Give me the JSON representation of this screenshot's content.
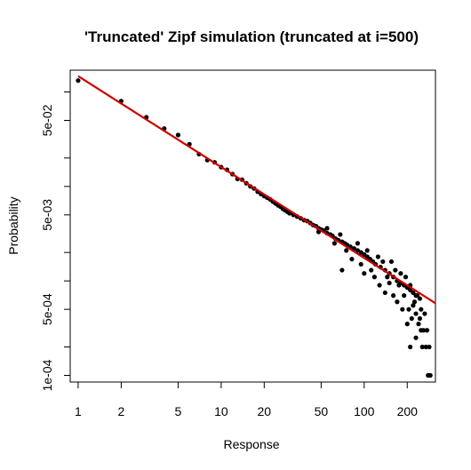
{
  "chart_data": {
    "type": "scatter",
    "title": "'Truncated' Zipf simulation (truncated at i=500)",
    "xlabel": "Response",
    "ylabel": "Probability",
    "x_scale": "log",
    "y_scale": "log",
    "xlim": [
      0.88,
      315
    ],
    "ylim": [
      8.5e-05,
      0.17
    ],
    "x_ticks": [
      1,
      2,
      5,
      10,
      20,
      50,
      100,
      200
    ],
    "x_tick_labels": [
      "1",
      "2",
      "5",
      "10",
      "20",
      "50",
      "100",
      "200"
    ],
    "y_ticks": [
      0.0001,
      0.0002,
      0.0005,
      0.001,
      0.002,
      0.005,
      0.01,
      0.02,
      0.05,
      0.1
    ],
    "y_tick_labels": [
      "1e-04",
      "",
      "5e-04",
      "",
      "",
      "5e-03",
      "",
      "",
      "5e-02",
      ""
    ],
    "grid": false,
    "legend": "none",
    "fit_line": {
      "type": "line",
      "color": "#cc0000",
      "points": [
        [
          1,
          0.147
        ],
        [
          315,
          0.00058
        ]
      ]
    },
    "series": [
      {
        "marker": "filled-circle",
        "color": "#000000",
        "points": [
          [
            1,
            0.132
          ],
          [
            2,
            0.08
          ],
          [
            3,
            0.054
          ],
          [
            4,
            0.041
          ],
          [
            5,
            0.035
          ],
          [
            6,
            0.028
          ],
          [
            7,
            0.022
          ],
          [
            8,
            0.019
          ],
          [
            9,
            0.018
          ],
          [
            10,
            0.016
          ],
          [
            11,
            0.015
          ],
          [
            12,
            0.0135
          ],
          [
            13,
            0.012
          ],
          [
            14,
            0.0118
          ],
          [
            15,
            0.0108
          ],
          [
            16,
            0.01
          ],
          [
            17,
            0.0095
          ],
          [
            18,
            0.0088
          ],
          [
            19,
            0.0083
          ],
          [
            20,
            0.0079
          ],
          [
            21,
            0.0076
          ],
          [
            22,
            0.0073
          ],
          [
            23,
            0.0069
          ],
          [
            24,
            0.0066
          ],
          [
            25,
            0.0063
          ],
          [
            26,
            0.0061
          ],
          [
            27,
            0.0058
          ],
          [
            28,
            0.0056
          ],
          [
            29,
            0.0054
          ],
          [
            30,
            0.0052
          ],
          [
            32,
            0.005
          ],
          [
            34,
            0.0048
          ],
          [
            36,
            0.0046
          ],
          [
            38,
            0.0044
          ],
          [
            40,
            0.0043
          ],
          [
            42,
            0.0041
          ],
          [
            44,
            0.0039
          ],
          [
            46,
            0.0038
          ],
          [
            48,
            0.0036
          ],
          [
            50,
            0.0035
          ],
          [
            52,
            0.0034
          ],
          [
            55,
            0.0032
          ],
          [
            58,
            0.0031
          ],
          [
            60,
            0.003
          ],
          [
            63,
            0.0028
          ],
          [
            66,
            0.0027
          ],
          [
            70,
            0.0026
          ],
          [
            73,
            0.0025
          ],
          [
            76,
            0.0024
          ],
          [
            80,
            0.0023
          ],
          [
            85,
            0.0022
          ],
          [
            90,
            0.0021
          ],
          [
            95,
            0.002
          ],
          [
            100,
            0.0019
          ],
          [
            105,
            0.0018
          ],
          [
            110,
            0.0017
          ],
          [
            115,
            0.0016
          ],
          [
            120,
            0.0015
          ],
          [
            130,
            0.0014
          ],
          [
            140,
            0.0013
          ],
          [
            150,
            0.0012
          ],
          [
            160,
            0.0011
          ],
          [
            170,
            0.001
          ],
          [
            180,
            0.00095
          ],
          [
            190,
            0.0009
          ],
          [
            200,
            0.00085
          ],
          [
            210,
            0.0008
          ],
          [
            220,
            0.00075
          ],
          [
            230,
            0.0007
          ],
          [
            245,
            0.00065
          ],
          [
            48,
            0.0033
          ],
          [
            55,
            0.0036
          ],
          [
            62,
            0.0025
          ],
          [
            68,
            0.0031
          ],
          [
            75,
            0.0021
          ],
          [
            70,
            0.0013
          ],
          [
            82,
            0.0017
          ],
          [
            90,
            0.0025
          ],
          [
            95,
            0.0015
          ],
          [
            100,
            0.0012
          ],
          [
            105,
            0.0021
          ],
          [
            112,
            0.0013
          ],
          [
            118,
            0.0011
          ],
          [
            125,
            0.0018
          ],
          [
            128,
            0.0009
          ],
          [
            135,
            0.0016
          ],
          [
            140,
            0.00075
          ],
          [
            145,
            0.0011
          ],
          [
            150,
            0.00095
          ],
          [
            155,
            0.0016
          ],
          [
            160,
            0.0007
          ],
          [
            165,
            0.0013
          ],
          [
            170,
            0.0006
          ],
          [
            175,
            0.0009
          ],
          [
            180,
            0.0012
          ],
          [
            185,
            0.0005
          ],
          [
            190,
            0.0007
          ],
          [
            195,
            0.0011
          ],
          [
            200,
            0.00035
          ],
          [
            205,
            0.0005
          ],
          [
            210,
            0.0009
          ],
          [
            215,
            0.0004
          ],
          [
            220,
            0.00055
          ],
          [
            225,
            0.0006
          ],
          [
            230,
            0.00045
          ],
          [
            235,
            0.0007
          ],
          [
            240,
            0.00035
          ],
          [
            245,
            0.0004
          ],
          [
            250,
            0.0005
          ],
          [
            255,
            0.0002
          ],
          [
            260,
            0.0003
          ],
          [
            265,
            0.00045
          ],
          [
            270,
            0.0002
          ],
          [
            275,
            0.0003
          ],
          [
            280,
            0.0001
          ],
          [
            285,
            0.0002
          ],
          [
            290,
            0.0001
          ],
          [
            210,
            0.0002
          ],
          [
            230,
            0.00025
          ],
          [
            250,
            0.0003
          ]
        ]
      }
    ]
  }
}
